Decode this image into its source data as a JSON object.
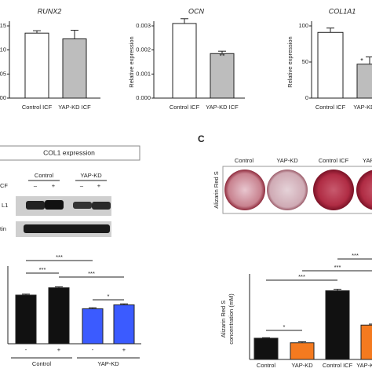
{
  "chart_data": [
    {
      "type": "bar",
      "title": "RUNX2",
      "categories": [
        "Control ICF",
        "YAP-KD ICF"
      ],
      "values": [
        0.0135,
        0.0123
      ],
      "errors": [
        0.0005,
        0.0018
      ],
      "colors": [
        "#ffffff",
        "#bdbdbd"
      ],
      "ylim": [
        0,
        0.015
      ],
      "yticks": [
        {
          "value": 0,
          "label": "00"
        },
        {
          "value": 0.005,
          "label": "05"
        },
        {
          "value": 0.01,
          "label": "10"
        },
        {
          "value": 0.015,
          "label": "15"
        }
      ]
    },
    {
      "type": "bar",
      "title": "OCN",
      "ylabel": "Relative expression",
      "categories": [
        "Control ICF",
        "YAP-KD ICF"
      ],
      "values": [
        0.0031,
        0.00185
      ],
      "errors": [
        0.0002,
        0.0001
      ],
      "colors": [
        "#ffffff",
        "#bdbdbd"
      ],
      "ylim": [
        0,
        0.003
      ],
      "yticks": [
        {
          "value": 0,
          "label": "0.000"
        },
        {
          "value": 0.001,
          "label": "0.001"
        },
        {
          "value": 0.002,
          "label": "0.002"
        },
        {
          "value": 0.003,
          "label": "0.003"
        }
      ],
      "annotations": [
        "**"
      ]
    },
    {
      "type": "bar",
      "title": "COL1A1",
      "ylabel": "Relative expression",
      "categories": [
        "Control ICF",
        "YAP-KD ICF"
      ],
      "values": [
        91,
        47
      ],
      "errors": [
        6,
        10
      ],
      "colors": [
        "#ffffff",
        "#bdbdbd"
      ],
      "ylim": [
        0,
        100
      ],
      "yticks": [
        0,
        50,
        100
      ],
      "annotations": [
        "*"
      ]
    },
    {
      "type": "bar",
      "categories": [
        "-",
        "+",
        "-",
        "+"
      ],
      "groups": [
        "Control",
        "YAP-KD"
      ],
      "values": [
        1.0,
        1.15,
        0.72,
        0.8
      ],
      "errors": [
        0.02,
        0.02,
        0.02,
        0.02
      ],
      "colors": [
        "#111111",
        "#111111",
        "#3b5bff",
        "#3b5bff"
      ],
      "ylim": [
        0,
        1.5
      ],
      "annotations": [
        "***",
        "***",
        "***",
        "*"
      ]
    },
    {
      "type": "bar",
      "ylabel": [
        "Alizarin Red S",
        "concentration (mM)"
      ],
      "categories": [
        "Control",
        "YAP-KD",
        "Control ICF",
        "YAP-KD ICF"
      ],
      "values": [
        0.021,
        0.0165,
        0.068,
        0.034
      ],
      "errors": [
        0.0005,
        0.001,
        0.0015,
        0.001
      ],
      "colors": [
        "#111111",
        "#f47a1f",
        "#111111",
        "#f47a1f"
      ],
      "ylim": [
        0,
        0.08
      ],
      "annotations": [
        "*",
        "***",
        "***",
        "***"
      ]
    }
  ],
  "blot": {
    "title": "COL1 expression",
    "groups": [
      "Control",
      "YAP-KD"
    ],
    "treatment": "CF",
    "signs": [
      "–",
      "+",
      "–",
      "+"
    ],
    "rows": [
      "L1",
      "tin"
    ]
  },
  "panel_c": {
    "letter": "C",
    "label": "Alizarin Red S",
    "wells": [
      "Control",
      "YAP-KD",
      "Control ICF",
      "YAP"
    ]
  }
}
